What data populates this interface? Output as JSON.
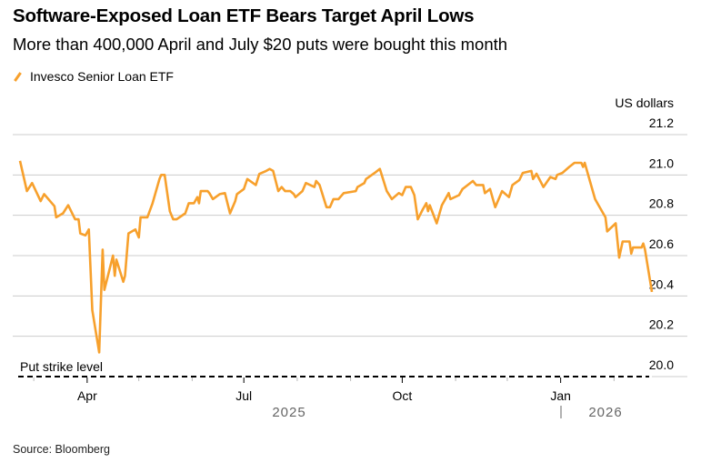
{
  "title": "Software-Exposed Loan ETF Bears Target April Lows",
  "subtitle": "More than 400,000 April and July $20 puts were bought this month",
  "source": "Source: Bloomberg",
  "colors": {
    "series": "#f7a02c",
    "grid": "#cccccc",
    "strike": "#000000"
  },
  "chart_data": {
    "type": "line",
    "title": "Software-Exposed Loan ETF Bears Target April Lows",
    "ylabel": "US dollars",
    "ylim": [
      20.0,
      21.2
    ],
    "yticks": [
      "20.0",
      "20.2",
      "20.4",
      "20.6",
      "20.8",
      "21.0",
      "21.2"
    ],
    "xlim": [
      "2025-02-21",
      "2026-02-23"
    ],
    "xticks": [
      {
        "date": "2025-04-01",
        "label": "Apr"
      },
      {
        "date": "2025-07-01",
        "label": "Jul"
      },
      {
        "date": "2025-10-01",
        "label": "Oct"
      },
      {
        "date": "2026-01-01",
        "label": "Jan"
      }
    ],
    "years": [
      "2025",
      "2026"
    ],
    "grid": true,
    "legend_position": "top-left",
    "annotation": {
      "label": "Put strike level",
      "value": 20.0,
      "style": "dashed"
    },
    "series": [
      {
        "name": "Invesco Senior Loan ETF",
        "color": "#f7a02c",
        "points": [
          [
            "2025-02-21",
            21.07
          ],
          [
            "2025-02-25",
            20.92
          ],
          [
            "2025-02-28",
            20.96
          ],
          [
            "2025-03-05",
            20.87
          ],
          [
            "2025-03-07",
            20.905
          ],
          [
            "2025-03-13",
            20.845
          ],
          [
            "2025-03-14",
            20.79
          ],
          [
            "2025-03-18",
            20.81
          ],
          [
            "2025-03-21",
            20.85
          ],
          [
            "2025-03-25",
            20.78
          ],
          [
            "2025-03-27",
            20.78
          ],
          [
            "2025-03-28",
            20.71
          ],
          [
            "2025-03-31",
            20.7
          ],
          [
            "2025-04-02",
            20.73
          ],
          [
            "2025-04-04",
            20.33
          ],
          [
            "2025-04-08",
            20.12
          ],
          [
            "2025-04-10",
            20.63
          ],
          [
            "2025-04-11",
            20.43
          ],
          [
            "2025-04-16",
            20.6
          ],
          [
            "2025-04-17",
            20.5
          ],
          [
            "2025-04-18",
            20.58
          ],
          [
            "2025-04-22",
            20.47
          ],
          [
            "2025-04-23",
            20.5
          ],
          [
            "2025-04-25",
            20.71
          ],
          [
            "2025-04-29",
            20.73
          ],
          [
            "2025-05-01",
            20.69
          ],
          [
            "2025-05-02",
            20.79
          ],
          [
            "2025-05-06",
            20.79
          ],
          [
            "2025-05-09",
            20.86
          ],
          [
            "2025-05-13",
            20.98
          ],
          [
            "2025-05-14",
            21.0
          ],
          [
            "2025-05-16",
            21.0
          ],
          [
            "2025-05-19",
            20.82
          ],
          [
            "2025-05-21",
            20.78
          ],
          [
            "2025-05-23",
            20.78
          ],
          [
            "2025-05-28",
            20.81
          ],
          [
            "2025-05-30",
            20.86
          ],
          [
            "2025-06-02",
            20.86
          ],
          [
            "2025-06-04",
            20.89
          ],
          [
            "2025-06-05",
            20.86
          ],
          [
            "2025-06-06",
            20.92
          ],
          [
            "2025-06-10",
            20.92
          ],
          [
            "2025-06-11",
            20.91
          ],
          [
            "2025-06-13",
            20.88
          ],
          [
            "2025-06-17",
            20.905
          ],
          [
            "2025-06-20",
            20.91
          ],
          [
            "2025-06-23",
            20.81
          ],
          [
            "2025-06-26",
            20.87
          ],
          [
            "2025-06-27",
            20.905
          ],
          [
            "2025-07-01",
            20.93
          ],
          [
            "2025-07-03",
            20.98
          ],
          [
            "2025-07-08",
            20.95
          ],
          [
            "2025-07-10",
            21.005
          ],
          [
            "2025-07-14",
            21.02
          ],
          [
            "2025-07-16",
            21.03
          ],
          [
            "2025-07-18",
            21.02
          ],
          [
            "2025-07-21",
            20.92
          ],
          [
            "2025-07-23",
            20.94
          ],
          [
            "2025-07-25",
            20.92
          ],
          [
            "2025-07-28",
            20.92
          ],
          [
            "2025-07-30",
            20.905
          ],
          [
            "2025-07-31",
            20.89
          ],
          [
            "2025-08-04",
            20.92
          ],
          [
            "2025-08-06",
            20.96
          ],
          [
            "2025-08-11",
            20.94
          ],
          [
            "2025-08-12",
            20.97
          ],
          [
            "2025-08-14",
            20.95
          ],
          [
            "2025-08-18",
            20.84
          ],
          [
            "2025-08-20",
            20.84
          ],
          [
            "2025-08-22",
            20.88
          ],
          [
            "2025-08-25",
            20.88
          ],
          [
            "2025-08-28",
            20.91
          ],
          [
            "2025-09-04",
            20.92
          ],
          [
            "2025-09-05",
            20.94
          ],
          [
            "2025-09-09",
            20.96
          ],
          [
            "2025-09-10",
            20.98
          ],
          [
            "2025-09-15",
            21.01
          ],
          [
            "2025-09-18",
            21.03
          ],
          [
            "2025-09-22",
            20.92
          ],
          [
            "2025-09-25",
            20.88
          ],
          [
            "2025-09-29",
            20.91
          ],
          [
            "2025-10-01",
            20.9
          ],
          [
            "2025-10-03",
            20.94
          ],
          [
            "2025-10-06",
            20.94
          ],
          [
            "2025-10-08",
            20.9
          ],
          [
            "2025-10-10",
            20.78
          ],
          [
            "2025-10-13",
            20.83
          ],
          [
            "2025-10-15",
            20.86
          ],
          [
            "2025-10-16",
            20.82
          ],
          [
            "2025-10-17",
            20.85
          ],
          [
            "2025-10-21",
            20.76
          ],
          [
            "2025-10-24",
            20.85
          ],
          [
            "2025-10-28",
            20.91
          ],
          [
            "2025-10-29",
            20.88
          ],
          [
            "2025-11-03",
            20.9
          ],
          [
            "2025-11-05",
            20.93
          ],
          [
            "2025-11-11",
            20.97
          ],
          [
            "2025-11-13",
            20.95
          ],
          [
            "2025-11-17",
            20.95
          ],
          [
            "2025-11-18",
            20.91
          ],
          [
            "2025-11-21",
            20.93
          ],
          [
            "2025-11-24",
            20.84
          ],
          [
            "2025-11-28",
            20.92
          ],
          [
            "2025-12-02",
            20.89
          ],
          [
            "2025-12-04",
            20.95
          ],
          [
            "2025-12-08",
            20.975
          ],
          [
            "2025-12-10",
            21.01
          ],
          [
            "2025-12-15",
            21.02
          ],
          [
            "2025-12-16",
            20.98
          ],
          [
            "2025-12-18",
            21.006
          ],
          [
            "2025-12-22",
            20.94
          ],
          [
            "2025-12-26",
            20.99
          ],
          [
            "2025-12-29",
            20.98
          ],
          [
            "2025-12-30",
            21.0
          ],
          [
            "2026-01-02",
            21.01
          ],
          [
            "2026-01-06",
            21.04
          ],
          [
            "2026-01-09",
            21.06
          ],
          [
            "2026-01-13",
            21.06
          ],
          [
            "2026-01-14",
            21.04
          ],
          [
            "2026-01-15",
            21.06
          ],
          [
            "2026-01-21",
            20.88
          ],
          [
            "2026-01-23",
            20.85
          ],
          [
            "2026-01-27",
            20.79
          ],
          [
            "2026-01-28",
            20.72
          ],
          [
            "2026-02-02",
            20.76
          ],
          [
            "2026-02-04",
            20.59
          ],
          [
            "2026-02-06",
            20.67
          ],
          [
            "2026-02-10",
            20.67
          ],
          [
            "2026-02-11",
            20.61
          ],
          [
            "2026-02-12",
            20.64
          ],
          [
            "2026-02-17",
            20.64
          ],
          [
            "2026-02-18",
            20.66
          ],
          [
            "2026-02-19",
            20.63
          ],
          [
            "2026-02-23",
            20.42
          ]
        ]
      }
    ]
  }
}
